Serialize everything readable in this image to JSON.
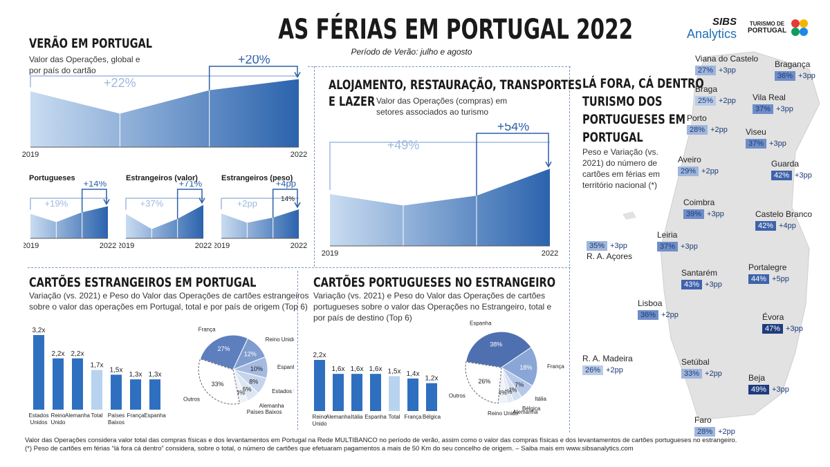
{
  "header": {
    "title": "AS FÉRIAS EM PORTUGAL 2022",
    "subtitle": "Período de Verão: julho e agosto",
    "logo_sibs": "SIBS",
    "logo_analytics": "Analytics",
    "logo_turismo_top": "TURISMO DE",
    "logo_turismo_bottom": "PORTUGAL"
  },
  "verao": {
    "title": "VERÃO EM PORTUGAL",
    "desc_line1": "Valor das Operações, global e",
    "desc_line2": "por país do cartão",
    "x_start": "2019",
    "x_end": "2022",
    "growth_total": "+22%",
    "growth_recent": "+20%",
    "small": [
      {
        "title": "Portugueses",
        "growth_total": "+19%",
        "growth_recent": "+14%",
        "x_start": "2019",
        "x_end": "2022",
        "extra": ""
      },
      {
        "title": "Estrangeiros (valor)",
        "growth_total": "+37%",
        "growth_recent": "+71%",
        "x_start": "2019",
        "x_end": "2022",
        "extra": ""
      },
      {
        "title": "Estrangeiros (peso)",
        "growth_total": "+2pp",
        "growth_recent": "+4pp",
        "x_start": "2019",
        "x_end": "2022",
        "extra": "14%"
      }
    ]
  },
  "alojamento": {
    "title_line1": "ALOJAMENTO, RESTAURAÇÃO, TRANSPORTES",
    "title_line2": "E LAZER",
    "desc_line1": "Valor das Operações (compras) em",
    "desc_line2": "setores associados ao turismo",
    "growth_total": "+49%",
    "growth_recent": "+54%",
    "x_start": "2019",
    "x_end": "2022"
  },
  "estrangeiros": {
    "title": "CARTÕES ESTRANGEIROS EM PORTUGAL",
    "desc_line1": "Variação (vs. 2021) e Peso do Valor das Operações de cartões estrangeiros",
    "desc_line2": "sobre o valor das operações em Portugal, total e por país de origem (Top 6)"
  },
  "portugueses": {
    "title": "CARTÕES PORTUGUESES NO ESTRANGEIRO",
    "desc_line1": "Variação (vs. 2021) e Peso do Valor das Operações de cartões",
    "desc_line2": "portugueses sobre o valor das Operações no Estrangeiro, total e",
    "desc_line3": "por país de destino (Top 6)"
  },
  "mapa": {
    "title_line1": "LÁ FORA, CÁ DENTRO",
    "title_line2": "TURISMO DOS",
    "title_line3": "PORTUGUESES EM",
    "title_line4": "PORTUGAL",
    "desc_line1": "Peso e Variação (vs.",
    "desc_line2": "2021) do número de",
    "desc_line3": "cartões em férias em",
    "desc_line4": "território nacional (*)",
    "regions": [
      {
        "name": "Viana do Castelo",
        "share": "27%",
        "var": "+3pp",
        "color": "#9fb6dc"
      },
      {
        "name": "Bragança",
        "share": "36%",
        "var": "+3pp",
        "color": "#6f8ec8"
      },
      {
        "name": "Braga",
        "share": "25%",
        "var": "+2pp",
        "color": "#b9cbe6"
      },
      {
        "name": "Vila Real",
        "share": "37%",
        "var": "+3pp",
        "color": "#6f8ec8"
      },
      {
        "name": "Porto",
        "share": "28%",
        "var": "+2pp",
        "color": "#9fb6dc"
      },
      {
        "name": "Viseu",
        "share": "37%",
        "var": "+3pp",
        "color": "#6f8ec8"
      },
      {
        "name": "Aveiro",
        "share": "29%",
        "var": "+2pp",
        "color": "#9fb6dc"
      },
      {
        "name": "Guarda",
        "share": "42%",
        "var": "+3pp",
        "color": "#3f63aa"
      },
      {
        "name": "Coimbra",
        "share": "39%",
        "var": "+3pp",
        "color": "#6f8ec8"
      },
      {
        "name": "Castelo Branco",
        "share": "42%",
        "var": "+4pp",
        "color": "#3f63aa"
      },
      {
        "name": "Leiria",
        "share": "37%",
        "var": "+3pp",
        "color": "#6f8ec8"
      },
      {
        "name": "R. A. Açores",
        "share": "35%",
        "var": "+3pp",
        "color": "#9fb6dc"
      },
      {
        "name": "Santarém",
        "share": "43%",
        "var": "+3pp",
        "color": "#3f63aa"
      },
      {
        "name": "Portalegre",
        "share": "44%",
        "var": "+5pp",
        "color": "#3f63aa"
      },
      {
        "name": "Lisboa",
        "share": "36%",
        "var": "+2pp",
        "color": "#6f8ec8"
      },
      {
        "name": "Évora",
        "share": "47%",
        "var": "+3pp",
        "color": "#1f3c7e"
      },
      {
        "name": "R. A. Madeira",
        "share": "26%",
        "var": "+2pp",
        "color": "#b9cbe6"
      },
      {
        "name": "Setúbal",
        "share": "33%",
        "var": "+2pp",
        "color": "#9fb6dc"
      },
      {
        "name": "Beja",
        "share": "49%",
        "var": "+3pp",
        "color": "#1f3c7e"
      },
      {
        "name": "Faro",
        "share": "28%",
        "var": "+2pp",
        "color": "#9fb6dc"
      }
    ]
  },
  "footer": {
    "line1": "Valor das Operações considera valor total das compras físicas e dos levantamentos em Portugal na Rede MULTIBANCO no período de verão, assim como o valor das compras físicas e dos levantamentos de cartões portugueses no estrangeiro.",
    "line2": "(*) Peso de cartões em férias “lá fora cá dentro” considera, sobre o total, o número de cartões que efetuaram pagamentos a mais de 50 Km do seu concelho de origem.  – Saiba mais em www.sibsanalytics.com"
  },
  "chart_data": [
    {
      "type": "area",
      "title": "VERÃO EM PORTUGAL",
      "x": [
        "2019",
        "2020",
        "2021",
        "2022"
      ],
      "values": [
        100,
        60,
        102,
        122
      ],
      "annotations": [
        "+22%",
        "+20%"
      ]
    },
    {
      "type": "area",
      "title": "Portugueses",
      "x": [
        "2019",
        "2020",
        "2021",
        "2022"
      ],
      "values": [
        100,
        80,
        104,
        119
      ],
      "annotations": [
        "+19%",
        "+14%"
      ]
    },
    {
      "type": "area",
      "title": "Estrangeiros (valor)",
      "x": [
        "2019",
        "2020",
        "2021",
        "2022"
      ],
      "values": [
        100,
        38,
        80,
        137
      ],
      "annotations": [
        "+37%",
        "+71%"
      ]
    },
    {
      "type": "area",
      "title": "Estrangeiros (peso)",
      "x": [
        "2019",
        "2020",
        "2021",
        "2022"
      ],
      "values": [
        12,
        7.5,
        10,
        14
      ],
      "annotations": [
        "+2pp",
        "+4pp",
        "14%"
      ]
    },
    {
      "type": "area",
      "title": "ALOJAMENTO, RESTAURAÇÃO, TRANSPORTES E LAZER",
      "x": [
        "2019",
        "2020",
        "2021",
        "2022"
      ],
      "values": [
        100,
        78,
        97,
        149
      ],
      "annotations": [
        "+49%",
        "+54%"
      ]
    },
    {
      "type": "bar",
      "title": "CARTÕES ESTRANGEIROS EM PORTUGAL",
      "categories": [
        "Estados Unidos",
        "Reino Unido",
        "Alemanha",
        "Total",
        "Países Baixos",
        "França",
        "Espanha"
      ],
      "values": [
        3.2,
        2.2,
        2.2,
        1.7,
        1.5,
        1.3,
        1.3
      ],
      "labels": [
        "3,2x",
        "2,2x",
        "2,2x",
        "1,7x",
        "1,5x",
        "1,3x",
        "1,3x"
      ],
      "highlight": "Total"
    },
    {
      "type": "pie",
      "title": "CARTÕES ESTRANGEIROS EM PORTUGAL",
      "slices": [
        {
          "label": "França",
          "value": 27
        },
        {
          "label": "Reino Unido",
          "value": 12
        },
        {
          "label": "Espanha",
          "value": 10
        },
        {
          "label": "Estados Unidos",
          "value": 8
        },
        {
          "label": "Alemanha",
          "value": 6
        },
        {
          "label": "Países Baixos",
          "value": 4
        },
        {
          "label": "Outros",
          "value": 33
        }
      ]
    },
    {
      "type": "bar",
      "title": "CARTÕES PORTUGUESES NO ESTRANGEIRO",
      "categories": [
        "Reino Unido",
        "Alemanha",
        "Itália",
        "Espanha",
        "Total",
        "França",
        "Bélgica"
      ],
      "values": [
        2.2,
        1.6,
        1.6,
        1.6,
        1.5,
        1.4,
        1.2
      ],
      "labels": [
        "2,2x",
        "1,6x",
        "1,6x",
        "1,6x",
        "1,5x",
        "1,4x",
        "1,2x"
      ],
      "highlight": "Total"
    },
    {
      "type": "pie",
      "title": "CARTÕES PORTUGUESES NO ESTRANGEIRO",
      "slices": [
        {
          "label": "Espanha",
          "value": 38
        },
        {
          "label": "França",
          "value": 18
        },
        {
          "label": "Itália",
          "value": 7
        },
        {
          "label": "Bélgica",
          "value": 4
        },
        {
          "label": "Alemanha",
          "value": 3
        },
        {
          "label": "Reino Unido",
          "value": 4
        },
        {
          "label": "Outros",
          "value": 26
        }
      ]
    }
  ],
  "colors": {
    "dark_blue": "#1f3c7e",
    "mid_blue": "#3f63aa",
    "bar_blue": "#2f6fc0",
    "bar_total": "#b7d3ef",
    "area_light": "#c9dcf1",
    "area_dark": "#2b63ad",
    "annotation": "#2b5ea8",
    "annotation_light": "#9eb8de"
  }
}
